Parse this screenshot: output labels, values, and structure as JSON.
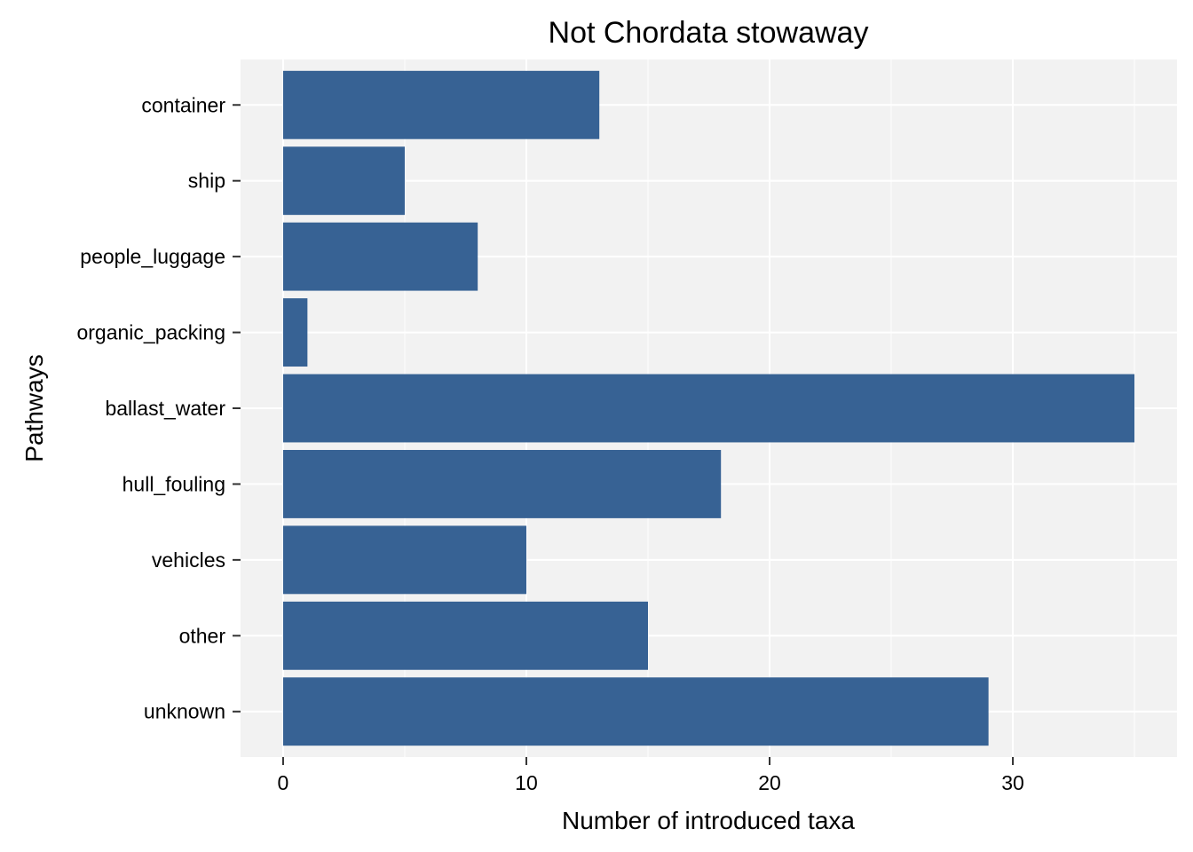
{
  "chart_data": {
    "type": "bar",
    "orientation": "horizontal",
    "title": "Not Chordata stowaway",
    "xlabel": "Number of introduced taxa",
    "ylabel": "Pathways",
    "categories": [
      "container",
      "ship",
      "people_luggage",
      "organic_packing",
      "ballast_water",
      "hull_fouling",
      "vehicles",
      "other",
      "unknown"
    ],
    "values": [
      13,
      5,
      8,
      1,
      35,
      18,
      10,
      15,
      29
    ],
    "xlim": [
      -1.75,
      36.75
    ],
    "x_ticks": [
      0,
      10,
      20,
      30
    ],
    "x_tick_labels": [
      "0",
      "10",
      "20",
      "30"
    ],
    "grid": true,
    "legend": "none",
    "colors": {
      "bar": "#376294",
      "panel_background": "#f2f2f2",
      "grid": "#ffffff",
      "axis_tick": "#333333"
    }
  }
}
